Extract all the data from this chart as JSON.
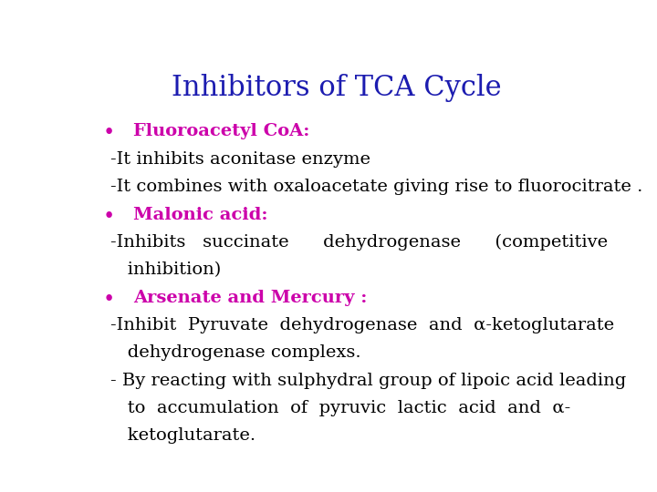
{
  "title": "Inhibitors of TCA Cycle",
  "title_color": "#1C1CB0",
  "title_fontsize": 22,
  "background_color": "#ffffff",
  "bullet_color": "#CC00AA",
  "body_color": "#000000",
  "bullet_fontsize": 14,
  "body_fontsize": 14,
  "lines": [
    {
      "type": "bullet",
      "text": "Fluoroacetyl CoA:",
      "indent": 0
    },
    {
      "type": "body",
      "text": "-It inhibits aconitase enzyme",
      "indent": 0
    },
    {
      "type": "body",
      "text": "-It combines with oxaloacetate giving rise to fluorocitrate .",
      "indent": 0
    },
    {
      "type": "bullet",
      "text": "Malonic acid:",
      "indent": 0
    },
    {
      "type": "body",
      "text": "-Inhibits   succinate      dehydrogenase      (competitive",
      "indent": 0
    },
    {
      "type": "body",
      "text": "   inhibition)",
      "indent": 1
    },
    {
      "type": "bullet",
      "text": "Arsenate and Mercury :",
      "indent": 0
    },
    {
      "type": "body",
      "text": "-Inhibit  Pyruvate  dehydrogenase  and  α-ketoglutarate",
      "indent": 0
    },
    {
      "type": "body",
      "text": "   dehydrogenase complexs.",
      "indent": 1
    },
    {
      "type": "body",
      "text": "- By reacting with sulphydral group of lipoic acid leading",
      "indent": 0
    },
    {
      "type": "body",
      "text": "   to  accumulation  of  pyruvic  lactic  acid  and  α-",
      "indent": 1
    },
    {
      "type": "body",
      "text": "   ketoglutarate.",
      "indent": 1
    }
  ]
}
